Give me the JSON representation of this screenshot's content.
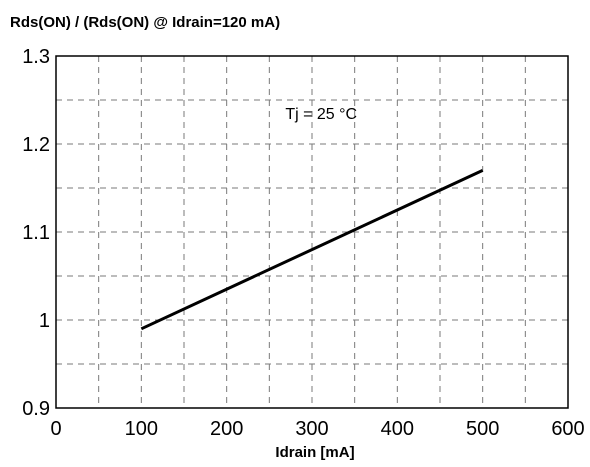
{
  "chart_data": {
    "type": "line",
    "title": "Rds(ON) / (Rds(ON) @ Idrain=120 mA)",
    "xlabel": "Idrain [mA]",
    "ylabel": "",
    "xlim": [
      0,
      600
    ],
    "ylim": [
      0.9,
      1.3
    ],
    "x_ticks": [
      0,
      100,
      200,
      300,
      400,
      500,
      600
    ],
    "x_tick_labels": [
      "0",
      "100",
      "200",
      "300",
      "400",
      "500",
      "600"
    ],
    "y_ticks": [
      0.9,
      1.0,
      1.1,
      1.2,
      1.3
    ],
    "y_tick_labels": [
      "0.9",
      "1",
      "1.1",
      "1.2",
      "1.3"
    ],
    "grid": true,
    "grid_style": "dashed",
    "annotation": "Tj = 25 °C",
    "line_color": "#000000",
    "series": [
      {
        "x": [
          100,
          500
        ],
        "y": [
          0.99,
          1.17
        ]
      }
    ]
  }
}
